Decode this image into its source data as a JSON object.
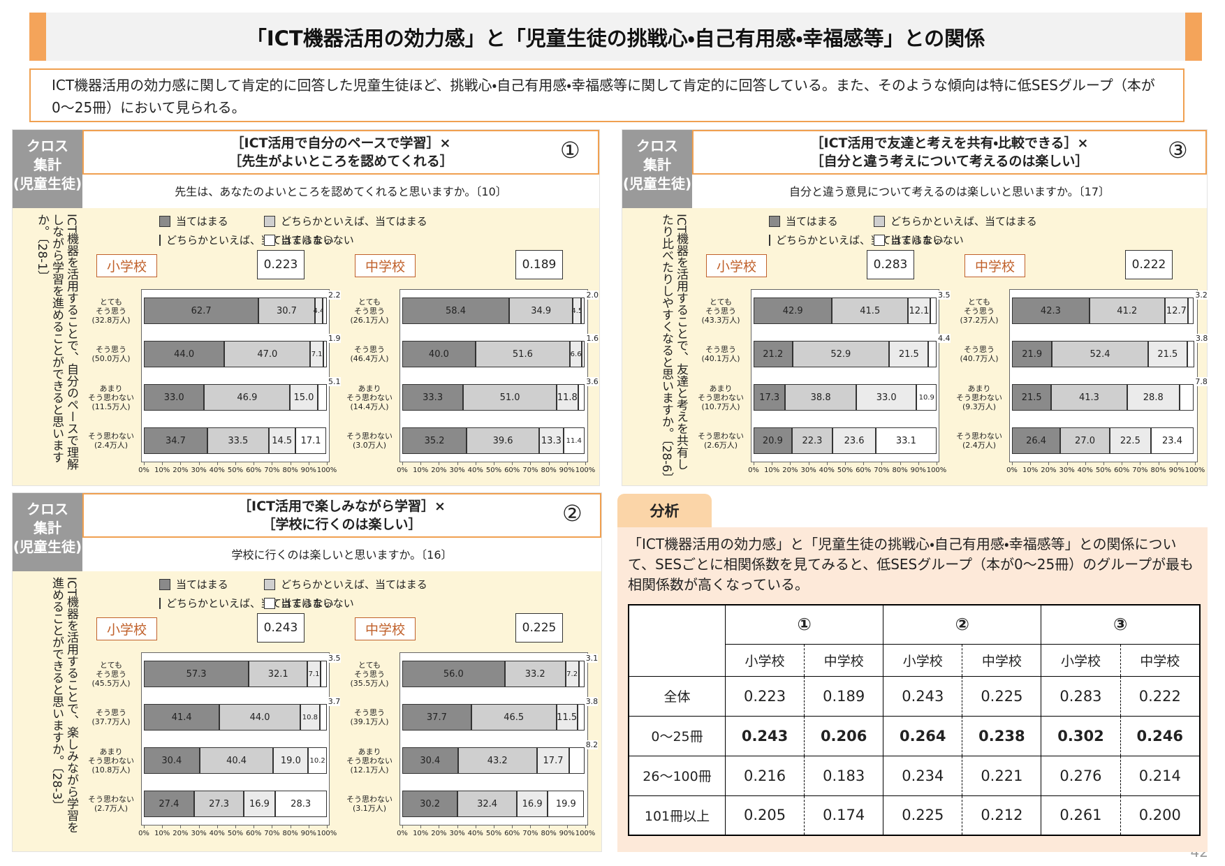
{
  "header": {
    "title": "「ICT機器活用の効力感」と「児童生徒の挑戦心・自己有用感・幸福感等」との関係"
  },
  "summary": "ICT機器活用の効力感に関して肯定的に回答した児童生徒ほど、挑戦心・自己有用感・幸福感等に関して肯定的に回答している。また、そのような傾向は特に低SESグループ（本が0～25冊）において見られる。",
  "panels": [
    {
      "number": "①",
      "badge": "クロス\n集計\n(児童生徒)",
      "heading": "［ICT活用で自分のペースで学習］×\n［先生がよいところを認めてくれる］",
      "question": "先生は、あなたのよいところを認めてくれると思いますか。〔10〕",
      "side_question": "ICT機器を活用することで、自分のペースで理解しながら学習を進めることができると思いますか。〔28-1〕"
    },
    {
      "number": "③",
      "badge": "クロス\n集計\n(児童生徒)",
      "heading": "［ICT活用で友達と考えを共有・比較できる］×\n［自分と違う考えについて考えるのは楽しい］",
      "question": "自分と違う意見について考えるのは楽しいと思いますか。〔17〕",
      "side_question": "ICT機器を活用することで、友達と考えを共有したり比べたりしやすくなると思いますか。〔28-6〕"
    },
    {
      "number": "②",
      "badge": "クロス\n集計\n(児童生徒)",
      "heading": "［ICT活用で楽しみながら学習］×\n［学校に行くのは楽しい］",
      "question": "学校に行くのは楽しいと思いますか。〔16〕",
      "side_question": "ICT機器を活用することで、楽しみながら学習を進めることができると思いますか。〔28-3〕"
    }
  ],
  "chart_data": [
    {
      "type": "bar",
      "stacked": true,
      "school": "小学校",
      "correlation": 0.223,
      "categories": [
        "とても\nそう思う\n(32.8万人)",
        "そう思う\n(50.0万人)",
        "あまり\nそう思わない\n(11.5万人)",
        "そう思わない\n(2.4万人)"
      ],
      "series": [
        {
          "name": "当てはまる",
          "color": "#8a8a8a",
          "values": [
            62.7,
            44.0,
            33.0,
            34.7
          ],
          "value_labels": [
            "62.7",
            "44.0",
            "33.0",
            "34.7"
          ]
        },
        {
          "name": "どちらかといえば、当てはまる",
          "color": "#cfcfcf",
          "values": [
            30.7,
            47.0,
            46.9,
            33.5
          ],
          "value_labels": [
            "30.7",
            "47.0",
            "46.9",
            "33.5"
          ]
        },
        {
          "name": "どちらかといえば、当てはまらない",
          "color": "#ebebeb",
          "values": [
            4.4,
            7.1,
            15.0,
            14.5
          ],
          "value_labels": [
            "4.4",
            "7.1",
            "15.0",
            "14.5"
          ]
        },
        {
          "name": "当てはまらない",
          "color": "#ffffff",
          "values": [
            2.2,
            1.9,
            5.1,
            17.1
          ],
          "value_labels": [
            "2.2",
            "1.9",
            "5.1",
            "17.1"
          ]
        }
      ],
      "xlim": [
        0,
        100
      ],
      "xticks": [
        {
          "value": 0,
          "label": "0%"
        },
        {
          "value": 10,
          "label": "10%"
        },
        {
          "value": 20,
          "label": "20%"
        },
        {
          "value": 30,
          "label": "30%"
        },
        {
          "value": 40,
          "label": "40%"
        },
        {
          "value": 50,
          "label": "50%"
        },
        {
          "value": 60,
          "label": "60%"
        },
        {
          "value": 70,
          "label": "70%"
        },
        {
          "value": 80,
          "label": "80%"
        },
        {
          "value": 90,
          "label": "90%"
        },
        {
          "value": 100,
          "label": "100%"
        }
      ]
    },
    {
      "type": "bar",
      "stacked": true,
      "school": "中学校",
      "correlation": 0.189,
      "categories": [
        "とても\nそう思う\n(26.1万人)",
        "そう思う\n(46.4万人)",
        "あまり\nそう思わない\n(14.4万人)",
        "そう思わない\n(3.0万人)"
      ],
      "series": [
        {
          "name": "当てはまる",
          "color": "#8a8a8a",
          "values": [
            58.4,
            40.0,
            33.3,
            35.2
          ],
          "value_labels": [
            "58.4",
            "40.0",
            "33.3",
            "35.2"
          ]
        },
        {
          "name": "どちらかといえば、当てはまる",
          "color": "#cfcfcf",
          "values": [
            34.9,
            51.6,
            51.0,
            39.6
          ],
          "value_labels": [
            "34.9",
            "51.6",
            "51.0",
            "39.6"
          ]
        },
        {
          "name": "どちらかといえば、当てはまらない",
          "color": "#ebebeb",
          "values": [
            4.5,
            6.6,
            11.8,
            13.3
          ],
          "value_labels": [
            "4.5",
            "6.6",
            "11.8",
            "13.3"
          ]
        },
        {
          "name": "当てはまらない",
          "color": "#ffffff",
          "values": [
            2.0,
            1.6,
            3.6,
            11.4
          ],
          "value_labels": [
            "2.0",
            "1.6",
            "3.6",
            "11.4"
          ]
        }
      ],
      "xlim": [
        0,
        100
      ],
      "xticks": [
        {
          "value": 0,
          "label": "0%"
        },
        {
          "value": 10,
          "label": "10%"
        },
        {
          "value": 20,
          "label": "20%"
        },
        {
          "value": 30,
          "label": "30%"
        },
        {
          "value": 40,
          "label": "40%"
        },
        {
          "value": 50,
          "label": "50%"
        },
        {
          "value": 60,
          "label": "60%"
        },
        {
          "value": 70,
          "label": "70%"
        },
        {
          "value": 80,
          "label": "80%"
        },
        {
          "value": 90,
          "label": "90%"
        },
        {
          "value": 100,
          "label": "100%"
        }
      ]
    },
    {
      "type": "bar",
      "stacked": true,
      "school": "小学校",
      "correlation": 0.283,
      "categories": [
        "とても\nそう思う\n(43.3万人)",
        "そう思う\n(40.1万人)",
        "あまり\nそう思わない\n(10.7万人)",
        "そう思わない\n(2.6万人)"
      ],
      "series": [
        {
          "name": "当てはまる",
          "color": "#8a8a8a",
          "values": [
            42.9,
            21.2,
            17.3,
            20.9
          ],
          "value_labels": [
            "42.9",
            "21.2",
            "17.3",
            "20.9"
          ]
        },
        {
          "name": "どちらかといえば、当てはまる",
          "color": "#cfcfcf",
          "values": [
            41.5,
            52.9,
            38.8,
            22.3
          ],
          "value_labels": [
            "41.5",
            "52.9",
            "38.8",
            "22.3"
          ]
        },
        {
          "name": "どちらかといえば、当てはまらない",
          "color": "#ebebeb",
          "values": [
            12.1,
            21.5,
            33.0,
            23.6
          ],
          "value_labels": [
            "12.1",
            "21.5",
            "33.0",
            "23.6"
          ]
        },
        {
          "name": "当てはまらない",
          "color": "#ffffff",
          "values": [
            3.5,
            4.4,
            10.9,
            33.1
          ],
          "value_labels": [
            "3.5",
            "4.4",
            "10.9",
            "33.1"
          ]
        }
      ],
      "xlim": [
        0,
        100
      ],
      "xticks": [
        {
          "value": 0,
          "label": "0%"
        },
        {
          "value": 10,
          "label": "10%"
        },
        {
          "value": 20,
          "label": "20%"
        },
        {
          "value": 30,
          "label": "30%"
        },
        {
          "value": 40,
          "label": "40%"
        },
        {
          "value": 50,
          "label": "50%"
        },
        {
          "value": 60,
          "label": "60%"
        },
        {
          "value": 70,
          "label": "70%"
        },
        {
          "value": 80,
          "label": "80%"
        },
        {
          "value": 90,
          "label": "90%"
        },
        {
          "value": 100,
          "label": "100%"
        }
      ]
    },
    {
      "type": "bar",
      "stacked": true,
      "school": "中学校",
      "correlation": 0.222,
      "categories": [
        "とても\nそう思う\n(37.2万人)",
        "そう思う\n(40.7万人)",
        "あまり\nそう思わない\n(9.3万人)",
        "そう思わない\n(2.4万人)"
      ],
      "series": [
        {
          "name": "当てはまる",
          "color": "#8a8a8a",
          "values": [
            42.3,
            21.9,
            21.5,
            26.4
          ],
          "value_labels": [
            "42.3",
            "21.9",
            "21.5",
            "26.4"
          ]
        },
        {
          "name": "どちらかといえば、当てはまる",
          "color": "#cfcfcf",
          "values": [
            41.2,
            52.4,
            41.3,
            27.0
          ],
          "value_labels": [
            "41.2",
            "52.4",
            "41.3",
            "27.0"
          ]
        },
        {
          "name": "どちらかといえば、当てはまらない",
          "color": "#ebebeb",
          "values": [
            12.7,
            21.5,
            28.8,
            22.5
          ],
          "value_labels": [
            "12.7",
            "21.5",
            "28.8",
            "22.5"
          ]
        },
        {
          "name": "当てはまらない",
          "color": "#ffffff",
          "values": [
            3.2,
            3.8,
            7.8,
            23.4
          ],
          "value_labels": [
            "3.2",
            "3.8",
            "7.8",
            "23.4"
          ]
        }
      ],
      "xlim": [
        0,
        100
      ],
      "xticks": [
        {
          "value": 0,
          "label": "0%"
        },
        {
          "value": 10,
          "label": "10%"
        },
        {
          "value": 20,
          "label": "20%"
        },
        {
          "value": 30,
          "label": "30%"
        },
        {
          "value": 40,
          "label": "40%"
        },
        {
          "value": 50,
          "label": "50%"
        },
        {
          "value": 60,
          "label": "60%"
        },
        {
          "value": 70,
          "label": "70%"
        },
        {
          "value": 80,
          "label": "80%"
        },
        {
          "value": 90,
          "label": "90%"
        },
        {
          "value": 100,
          "label": "100%"
        }
      ]
    },
    {
      "type": "bar",
      "stacked": true,
      "school": "小学校",
      "correlation": 0.243,
      "categories": [
        "とても\nそう思う\n(45.5万人)",
        "そう思う\n(37.7万人)",
        "あまり\nそう思わない\n(10.8万人)",
        "そう思わない\n(2.7万人)"
      ],
      "series": [
        {
          "name": "当てはまる",
          "color": "#8a8a8a",
          "values": [
            57.3,
            41.4,
            30.4,
            27.4
          ],
          "value_labels": [
            "57.3",
            "41.4",
            "30.4",
            "27.4"
          ]
        },
        {
          "name": "どちらかといえば、当てはまる",
          "color": "#cfcfcf",
          "values": [
            32.1,
            44.0,
            40.4,
            27.3
          ],
          "value_labels": [
            "32.1",
            "44.0",
            "40.4",
            "27.3"
          ]
        },
        {
          "name": "どちらかといえば、当てはまらない",
          "color": "#ebebeb",
          "values": [
            7.1,
            10.8,
            19.0,
            16.9
          ],
          "value_labels": [
            "7.1",
            "10.8",
            "19.0",
            "16.9"
          ]
        },
        {
          "name": "当てはまらない",
          "color": "#ffffff",
          "values": [
            3.5,
            3.7,
            10.2,
            28.3
          ],
          "value_labels": [
            "3.5",
            "3.7",
            "10.2",
            "28.3"
          ]
        }
      ],
      "xlim": [
        0,
        100
      ],
      "xticks": [
        {
          "value": 0,
          "label": "0%"
        },
        {
          "value": 10,
          "label": "10%"
        },
        {
          "value": 20,
          "label": "20%"
        },
        {
          "value": 30,
          "label": "30%"
        },
        {
          "value": 40,
          "label": "40%"
        },
        {
          "value": 50,
          "label": "50%"
        },
        {
          "value": 60,
          "label": "60%"
        },
        {
          "value": 70,
          "label": "70%"
        },
        {
          "value": 80,
          "label": "80%"
        },
        {
          "value": 90,
          "label": "90%"
        },
        {
          "value": 100,
          "label": "100%"
        }
      ]
    },
    {
      "type": "bar",
      "stacked": true,
      "school": "中学校",
      "correlation": 0.225,
      "categories": [
        "とても\nそう思う\n(35.5万人)",
        "そう思う\n(39.1万人)",
        "あまり\nそう思わない\n(12.1万人)",
        "そう思わない\n(3.1万人)"
      ],
      "series": [
        {
          "name": "当てはまる",
          "color": "#8a8a8a",
          "values": [
            56.0,
            37.7,
            30.4,
            30.2
          ],
          "value_labels": [
            "56.0",
            "37.7",
            "30.4",
            "30.2"
          ]
        },
        {
          "name": "どちらかといえば、当てはまる",
          "color": "#cfcfcf",
          "values": [
            33.2,
            46.5,
            43.2,
            32.4
          ],
          "value_labels": [
            "33.2",
            "46.5",
            "43.2",
            "32.4"
          ]
        },
        {
          "name": "どちらかといえば、当てはまらない",
          "color": "#ebebeb",
          "values": [
            7.2,
            11.5,
            17.7,
            16.9
          ],
          "value_labels": [
            "7.2",
            "11.5",
            "17.7",
            "16.9"
          ]
        },
        {
          "name": "当てはまらない",
          "color": "#ffffff",
          "values": [
            3.1,
            3.8,
            8.2,
            19.9
          ],
          "value_labels": [
            "3.1",
            "3.8",
            "8.2",
            "19.9"
          ]
        }
      ],
      "xlim": [
        0,
        100
      ],
      "xticks": [
        {
          "value": 0,
          "label": "0%"
        },
        {
          "value": 10,
          "label": "10%"
        },
        {
          "value": 20,
          "label": "20%"
        },
        {
          "value": 30,
          "label": "30%"
        },
        {
          "value": 40,
          "label": "40%"
        },
        {
          "value": 50,
          "label": "50%"
        },
        {
          "value": 60,
          "label": "60%"
        },
        {
          "value": 70,
          "label": "70%"
        },
        {
          "value": 80,
          "label": "80%"
        },
        {
          "value": 90,
          "label": "90%"
        },
        {
          "value": 100,
          "label": "100%"
        }
      ]
    }
  ],
  "analysis": {
    "tab": "分析",
    "text": "「ICT機器活用の効力感」と「児童生徒の挑戦心・自己有用感・幸福感等」との関係について、SESごとに相関係数を見てみると、低SESグループ（本が0～25冊）のグループが最も相関係数が高くなっている。",
    "columns": [
      {
        "group": "①",
        "schools": [
          "小学校",
          "中学校"
        ]
      },
      {
        "group": "②",
        "schools": [
          "小学校",
          "中学校"
        ]
      },
      {
        "group": "③",
        "schools": [
          "小学校",
          "中学校"
        ]
      }
    ],
    "rows": [
      {
        "label": "全体",
        "values": [
          "0.223",
          "0.189",
          "0.243",
          "0.225",
          "0.283",
          "0.222"
        ]
      },
      {
        "label": "0～25冊",
        "values": [
          "0.243",
          "0.206",
          "0.264",
          "0.238",
          "0.302",
          "0.246"
        ],
        "bold": true
      },
      {
        "label": "26～100冊",
        "values": [
          "0.216",
          "0.183",
          "0.234",
          "0.221",
          "0.276",
          "0.214"
        ]
      },
      {
        "label": "101冊以上",
        "values": [
          "0.205",
          "0.174",
          "0.225",
          "0.212",
          "0.261",
          "0.200"
        ]
      }
    ]
  },
  "page_number": "42"
}
